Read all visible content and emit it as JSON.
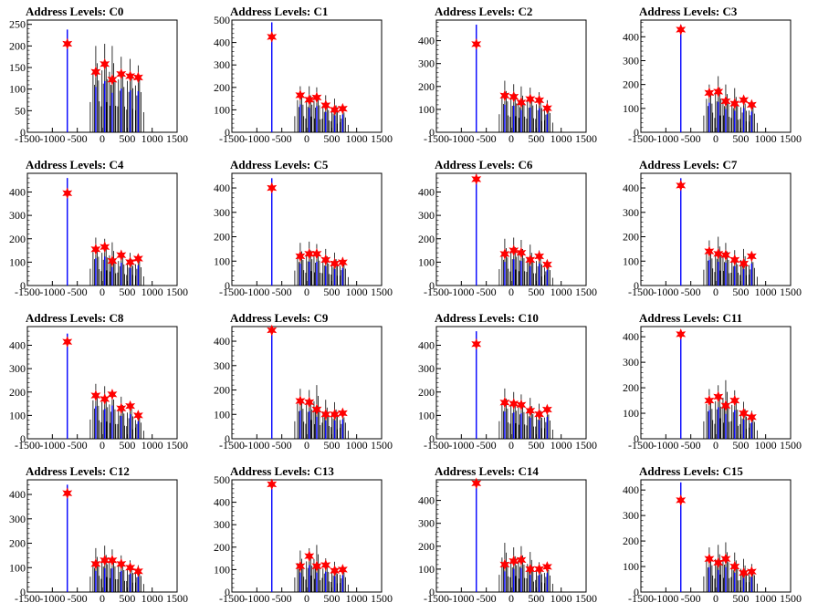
{
  "colors": {
    "peak": "#0000ff",
    "noise": "#000000",
    "marker": "#ff0000",
    "frame": "#000000"
  },
  "chart_data": [
    {
      "type": "bar",
      "title": "Address Levels: C0",
      "xlim": [
        -1500,
        1500
      ],
      "ylim": [
        0,
        260
      ],
      "yticks": [
        0,
        50,
        100,
        150,
        200,
        250
      ],
      "xticks": [
        -1500,
        -1000,
        -500,
        0,
        500,
        1000,
        1500
      ],
      "x": [
        -700,
        -130,
        50,
        200,
        380,
        560,
        720
      ],
      "markers": [
        205,
        140,
        158,
        122,
        135,
        130,
        127
      ],
      "bars": [
        238,
        200,
        205,
        200,
        175,
        170,
        155
      ],
      "grid": false
    },
    {
      "type": "bar",
      "title": "Address Levels: C1",
      "xlim": [
        -1500,
        1500
      ],
      "ylim": [
        0,
        500
      ],
      "yticks": [
        0,
        100,
        200,
        300,
        400,
        500
      ],
      "xticks": [
        -1500,
        -1000,
        -500,
        0,
        500,
        1000,
        1500
      ],
      "x": [
        -700,
        -130,
        50,
        200,
        380,
        560,
        720
      ],
      "markers": [
        425,
        165,
        145,
        155,
        120,
        100,
        105
      ],
      "bars": [
        490,
        205,
        205,
        200,
        165,
        150,
        110
      ],
      "grid": false
    },
    {
      "type": "bar",
      "title": "Address Levels: C2",
      "xlim": [
        -1500,
        1500
      ],
      "ylim": [
        0,
        490
      ],
      "yticks": [
        0,
        100,
        200,
        300,
        400
      ],
      "xticks": [
        -1500,
        -1000,
        -500,
        0,
        500,
        1000,
        1500
      ],
      "x": [
        -700,
        -130,
        50,
        200,
        380,
        560,
        720
      ],
      "markers": [
        385,
        160,
        155,
        130,
        145,
        140,
        105
      ],
      "bars": [
        470,
        225,
        210,
        200,
        195,
        175,
        140
      ],
      "grid": false
    },
    {
      "type": "bar",
      "title": "Address Levels: C3",
      "xlim": [
        -1500,
        1500
      ],
      "ylim": [
        0,
        470
      ],
      "yticks": [
        0,
        100,
        200,
        300,
        400
      ],
      "xticks": [
        -1500,
        -1000,
        -500,
        0,
        500,
        1000,
        1500
      ],
      "x": [
        -700,
        -130,
        50,
        200,
        380,
        560,
        720
      ],
      "markers": [
        430,
        165,
        170,
        130,
        120,
        135,
        115
      ],
      "bars": [
        450,
        200,
        235,
        200,
        185,
        150,
        130
      ],
      "grid": false
    },
    {
      "type": "bar",
      "title": "Address Levels: C4",
      "xlim": [
        -1500,
        1500
      ],
      "ylim": [
        0,
        480
      ],
      "yticks": [
        0,
        100,
        200,
        300,
        400
      ],
      "xticks": [
        -1500,
        -1000,
        -500,
        0,
        500,
        1000,
        1500
      ],
      "x": [
        -700,
        -130,
        50,
        200,
        380,
        560,
        720
      ],
      "markers": [
        395,
        155,
        165,
        105,
        130,
        100,
        115
      ],
      "bars": [
        460,
        205,
        200,
        185,
        150,
        140,
        130
      ],
      "grid": false
    },
    {
      "type": "bar",
      "title": "Address Levels: C5",
      "xlim": [
        -1500,
        1500
      ],
      "ylim": [
        0,
        460
      ],
      "yticks": [
        0,
        100,
        200,
        300,
        400
      ],
      "xticks": [
        -1500,
        -1000,
        -500,
        0,
        500,
        1000,
        1500
      ],
      "x": [
        -700,
        -130,
        50,
        200,
        380,
        560,
        720
      ],
      "markers": [
        400,
        120,
        130,
        130,
        105,
        90,
        95
      ],
      "bars": [
        440,
        175,
        180,
        170,
        150,
        135,
        115
      ],
      "grid": false
    },
    {
      "type": "bar",
      "title": "Address Levels: C6",
      "xlim": [
        -1500,
        1500
      ],
      "ylim": [
        0,
        480
      ],
      "yticks": [
        0,
        100,
        200,
        300,
        400
      ],
      "xticks": [
        -1500,
        -1000,
        -500,
        0,
        500,
        1000,
        1500
      ],
      "x": [
        -700,
        -130,
        50,
        200,
        380,
        560,
        720
      ],
      "markers": [
        455,
        135,
        150,
        140,
        110,
        125,
        90
      ],
      "bars": [
        475,
        200,
        205,
        195,
        175,
        150,
        110
      ],
      "grid": false
    },
    {
      "type": "bar",
      "title": "Address Levels: C7",
      "xlim": [
        -1500,
        1500
      ],
      "ylim": [
        0,
        460
      ],
      "yticks": [
        0,
        100,
        200,
        300,
        400
      ],
      "xticks": [
        -1500,
        -1000,
        -500,
        0,
        500,
        1000,
        1500
      ],
      "x": [
        -700,
        -130,
        50,
        200,
        380,
        560,
        720
      ],
      "markers": [
        410,
        140,
        130,
        125,
        105,
        90,
        120
      ],
      "bars": [
        440,
        185,
        200,
        175,
        145,
        150,
        120
      ],
      "grid": false
    },
    {
      "type": "bar",
      "title": "Address Levels: C8",
      "xlim": [
        -1500,
        1500
      ],
      "ylim": [
        0,
        480
      ],
      "yticks": [
        0,
        100,
        200,
        300,
        400
      ],
      "xticks": [
        -1500,
        -1000,
        -500,
        0,
        500,
        1000,
        1500
      ],
      "x": [
        -700,
        -130,
        50,
        200,
        380,
        560,
        720
      ],
      "markers": [
        415,
        185,
        170,
        190,
        130,
        140,
        100
      ],
      "bars": [
        450,
        235,
        225,
        210,
        180,
        160,
        115
      ],
      "grid": false
    },
    {
      "type": "bar",
      "title": "Address Levels: C9",
      "xlim": [
        -1500,
        1500
      ],
      "ylim": [
        0,
        460
      ],
      "yticks": [
        0,
        100,
        200,
        300,
        400
      ],
      "xticks": [
        -1500,
        -1000,
        -500,
        0,
        500,
        1000,
        1500
      ],
      "x": [
        -700,
        -130,
        50,
        200,
        380,
        560,
        720
      ],
      "markers": [
        445,
        155,
        150,
        120,
        100,
        100,
        105
      ],
      "bars": [
        455,
        205,
        200,
        220,
        160,
        150,
        110
      ],
      "grid": false
    },
    {
      "type": "bar",
      "title": "Address Levels: C10",
      "xlim": [
        -1500,
        1500
      ],
      "ylim": [
        0,
        480
      ],
      "yticks": [
        0,
        100,
        200,
        300,
        400
      ],
      "xticks": [
        -1500,
        -1000,
        -500,
        0,
        500,
        1000,
        1500
      ],
      "x": [
        -700,
        -130,
        50,
        200,
        380,
        560,
        720
      ],
      "markers": [
        405,
        155,
        150,
        145,
        120,
        105,
        125
      ],
      "bars": [
        460,
        215,
        200,
        190,
        175,
        150,
        130
      ],
      "grid": false
    },
    {
      "type": "bar",
      "title": "Address Levels: C11",
      "xlim": [
        -1500,
        1500
      ],
      "ylim": [
        0,
        440
      ],
      "yticks": [
        0,
        100,
        200,
        300,
        400
      ],
      "xticks": [
        -1500,
        -1000,
        -500,
        0,
        500,
        1000,
        1500
      ],
      "x": [
        -700,
        -130,
        50,
        200,
        380,
        560,
        720
      ],
      "markers": [
        410,
        150,
        165,
        130,
        150,
        100,
        85
      ],
      "bars": [
        425,
        195,
        210,
        230,
        190,
        145,
        110
      ],
      "grid": false
    },
    {
      "type": "bar",
      "title": "Address Levels: C12",
      "xlim": [
        -1500,
        1500
      ],
      "ylim": [
        0,
        460
      ],
      "yticks": [
        0,
        100,
        200,
        300,
        400
      ],
      "xticks": [
        -1500,
        -1000,
        -500,
        0,
        500,
        1000,
        1500
      ],
      "x": [
        -700,
        -130,
        50,
        200,
        380,
        560,
        720
      ],
      "markers": [
        405,
        115,
        130,
        130,
        115,
        100,
        85
      ],
      "bars": [
        440,
        180,
        190,
        175,
        150,
        130,
        110
      ],
      "grid": false
    },
    {
      "type": "bar",
      "title": "Address Levels: C13",
      "xlim": [
        -1500,
        1500
      ],
      "ylim": [
        0,
        500
      ],
      "yticks": [
        0,
        100,
        200,
        300,
        400,
        500
      ],
      "xticks": [
        -1500,
        -1000,
        -500,
        0,
        500,
        1000,
        1500
      ],
      "x": [
        -700,
        -130,
        50,
        200,
        380,
        560,
        720
      ],
      "markers": [
        480,
        115,
        160,
        115,
        120,
        95,
        100
      ],
      "bars": [
        495,
        185,
        195,
        210,
        150,
        135,
        110
      ],
      "grid": false
    },
    {
      "type": "bar",
      "title": "Address Levels: C14",
      "xlim": [
        -1500,
        1500
      ],
      "ylim": [
        0,
        490
      ],
      "yticks": [
        0,
        100,
        200,
        300,
        400
      ],
      "xticks": [
        -1500,
        -1000,
        -500,
        0,
        500,
        1000,
        1500
      ],
      "x": [
        -700,
        -130,
        50,
        200,
        380,
        560,
        720
      ],
      "markers": [
        475,
        120,
        135,
        140,
        100,
        100,
        110
      ],
      "bars": [
        490,
        215,
        195,
        200,
        175,
        130,
        120
      ],
      "grid": false
    },
    {
      "type": "bar",
      "title": "Address Levels: C15",
      "xlim": [
        -1500,
        1500
      ],
      "ylim": [
        0,
        440
      ],
      "yticks": [
        0,
        100,
        200,
        300,
        400
      ],
      "xticks": [
        -1500,
        -1000,
        -500,
        0,
        500,
        1000,
        1500
      ],
      "x": [
        -700,
        -130,
        50,
        200,
        380,
        560,
        720
      ],
      "markers": [
        360,
        130,
        115,
        130,
        100,
        75,
        80
      ],
      "bars": [
        430,
        175,
        185,
        195,
        155,
        130,
        110
      ],
      "grid": false
    }
  ]
}
